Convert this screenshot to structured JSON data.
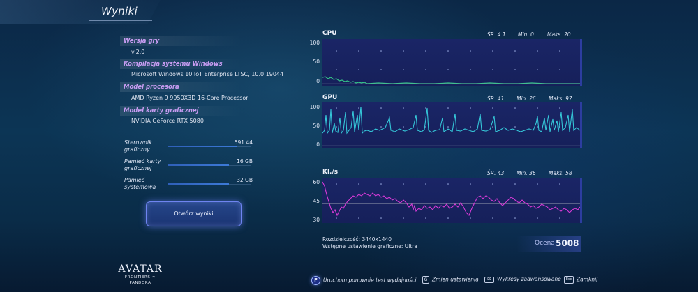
{
  "title": "Wyniki",
  "info": [
    {
      "label": "Wersja gry",
      "value": "v.2.0"
    },
    {
      "label": "Kompilacja systemu Windows",
      "value": "Microsoft Windows 10 IoT Enterprise LTSC, 10.0.19044"
    },
    {
      "label": "Model procesora",
      "value": "AMD Ryzen 9 9950X3D 16-Core Processor"
    },
    {
      "label": "Model karty graficznej",
      "value": "NVIDIA GeForce RTX 5080"
    }
  ],
  "stats": [
    {
      "label_line1": "Sterownik",
      "label_line2": "graficzny",
      "value": "591.44"
    },
    {
      "label_line1": "Pamięć karty",
      "label_line2": "graficznej",
      "value": "16 GB"
    },
    {
      "label_line1": "Pamięć",
      "label_line2": "systemowa",
      "value": "32 GB"
    }
  ],
  "open_results_label": "Otwórz wyniki",
  "logo": {
    "line1": "AVATAR",
    "line2": "FRONTIERS ≈ PANDORA"
  },
  "charts": [
    {
      "title": "CPU",
      "avg": "ŚR. 4.1",
      "min": "Min. 0",
      "max": "Maks. 20",
      "ticks": [
        "100",
        "50",
        "0"
      ],
      "color": "#35c58a"
    },
    {
      "title": "GPU",
      "avg": "ŚR. 41",
      "min": "Min. 26",
      "max": "Maks. 97",
      "ticks": [
        "100",
        "50",
        "0"
      ],
      "color": "#35c6d8"
    },
    {
      "title": "Kl./s",
      "avg": "ŚR. 43",
      "min": "Min. 36",
      "max": "Maks. 58",
      "ticks": [
        "60",
        "45",
        "30"
      ],
      "color": "#d63ad6"
    }
  ],
  "chart_data": [
    {
      "type": "line",
      "title": "CPU",
      "ylim": [
        0,
        100
      ],
      "series": [
        {
          "name": "CPU",
          "summary": {
            "avg": 4.1,
            "min": 0,
            "max": 20
          }
        }
      ]
    },
    {
      "type": "line",
      "title": "GPU",
      "ylim": [
        0,
        100
      ],
      "series": [
        {
          "name": "GPU",
          "summary": {
            "avg": 41,
            "min": 26,
            "max": 97
          }
        }
      ]
    },
    {
      "type": "line",
      "title": "Kl./s",
      "ylim": [
        30,
        60
      ],
      "series": [
        {
          "name": "Kl./s",
          "summary": {
            "avg": 43,
            "min": 36,
            "max": 58
          }
        }
      ]
    }
  ],
  "resolution": "Rozdzielczość: 3440x1440",
  "preset": "Wstępne ustawienie graficzne: Ultra",
  "score_label": "Ocena",
  "score_value": "5008",
  "footer": [
    {
      "key": "F",
      "label": "Uruchom ponownie test wydajności"
    },
    {
      "key": "G",
      "label": "Zmień ustawienia"
    },
    {
      "key": "⌧",
      "label": "Wykresy zaawansowane"
    },
    {
      "key": "Esc",
      "label": "Zamknij"
    }
  ]
}
